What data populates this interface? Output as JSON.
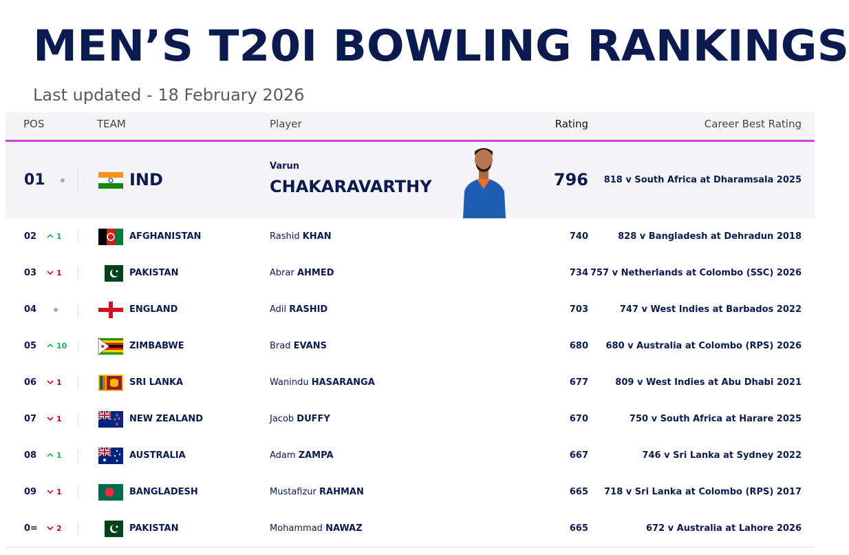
{
  "header": {
    "title": "MEN’S T20I BOWLING RANKINGS",
    "subtitle": "Last updated - 18 February 2026"
  },
  "table": {
    "columns": [
      "POS",
      "TEAM",
      "Player",
      "Rating",
      "Career Best Rating"
    ],
    "rows": [
      {
        "pos": "01",
        "team": "IND",
        "first": "Varun",
        "last": "CHAKARAVARTHY",
        "rating": 796,
        "best": "818 v South Africa at Dharamsala 2025"
      },
      {
        "pos": "02",
        "move": "1",
        "team": "AFGHANISTAN",
        "first": "Rashid",
        "last": "KHAN",
        "rating": 740,
        "best": "828 v Bangladesh at Dehradun 2018"
      },
      {
        "pos": "03",
        "move": "1",
        "team": "PAKISTAN",
        "first": "Abrar",
        "last": "AHMED",
        "rating": 734,
        "best": "757 v Netherlands at Colombo (SSC) 2026"
      },
      {
        "pos": "04",
        "team": "ENGLAND",
        "first": "Adil",
        "last": "RASHID",
        "rating": 703,
        "best": "747 v West Indies at Barbados 2022"
      },
      {
        "pos": "05",
        "move": "10",
        "team": "ZIMBABWE",
        "first": "Brad",
        "last": "EVANS",
        "rating": 680,
        "best": "680 v Australia at Colombo (RPS) 2026"
      },
      {
        "pos": "06",
        "move": "1",
        "team": "SRI LANKA",
        "first": "Wanindu",
        "last": "HASARANGA",
        "rating": 677,
        "best": "809 v West Indies at Abu Dhabi 2021"
      },
      {
        "pos": "07",
        "move": "1",
        "team": "NEW ZEALAND",
        "first": "Jacob",
        "last": "DUFFY",
        "rating": 670,
        "best": "750 v South Africa at Harare 2025"
      },
      {
        "pos": "08",
        "move": "1",
        "team": "AUSTRALIA",
        "first": "Adam",
        "last": "ZAMPA",
        "rating": 667,
        "best": "746 v Sri Lanka at Sydney 2022"
      },
      {
        "pos": "09",
        "move": "1",
        "team": "BANGLADESH",
        "first": "Mustafizur",
        "last": "RAHMAN",
        "rating": 665,
        "best": "718 v Sri Lanka at Colombo (RPS) 2017"
      },
      {
        "pos": "0=",
        "move": "2",
        "team": "PAKISTAN",
        "first": "Mohammad",
        "last": "NAWAZ",
        "rating": 665,
        "best": "672 v Australia at Lahore 2026"
      }
    ]
  }
}
